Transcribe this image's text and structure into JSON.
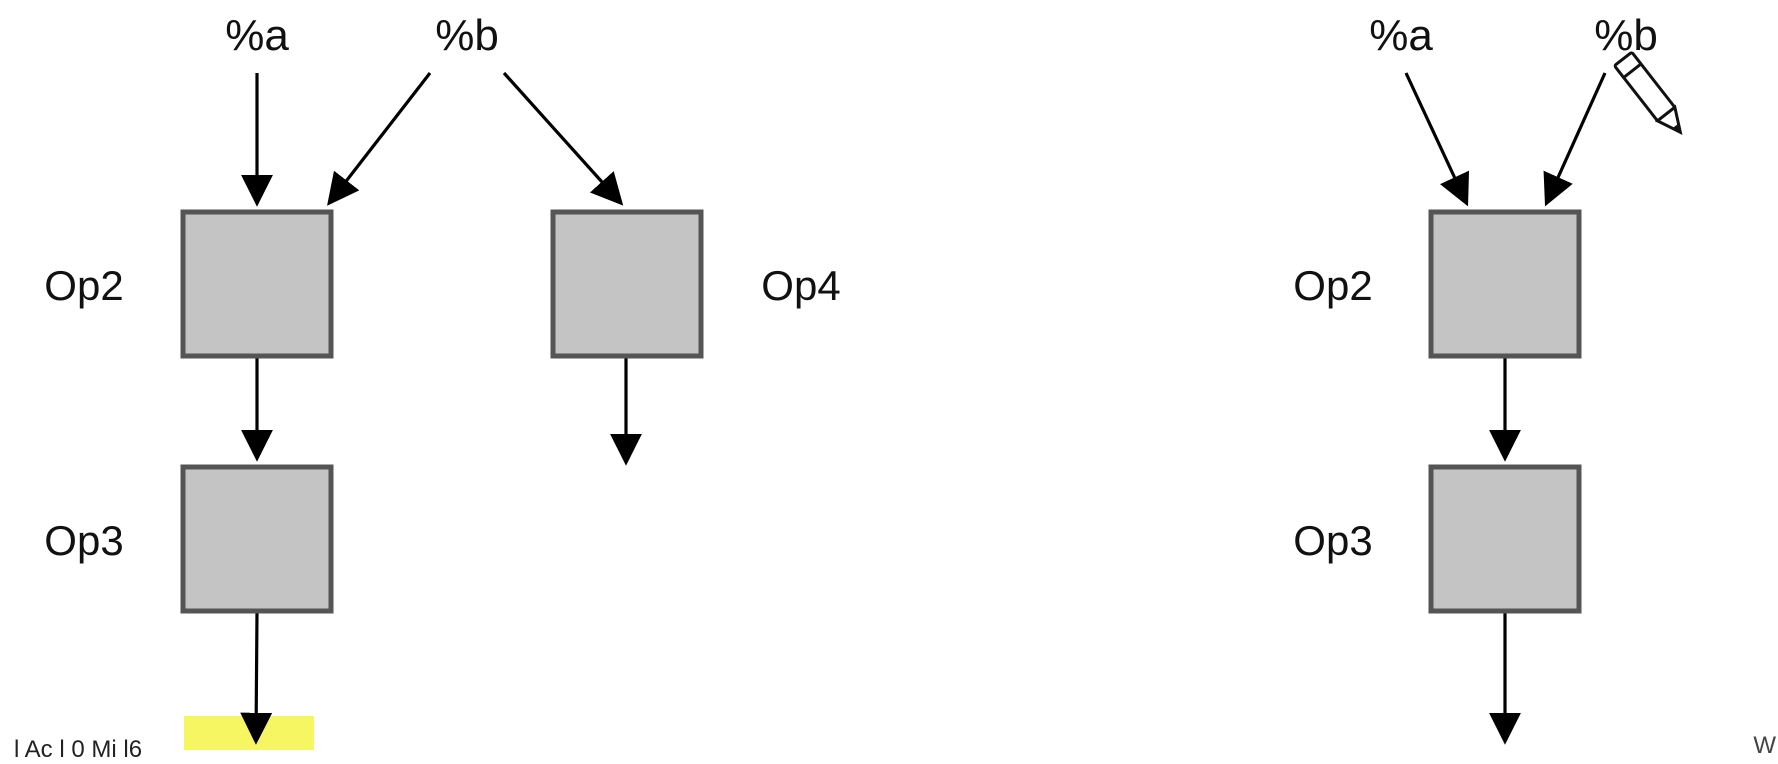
{
  "colors": {
    "box_fill": "#c4c4c4",
    "box_stroke": "#555555",
    "edge": "#000000",
    "highlight": "#f4f55a"
  },
  "diagrams": [
    {
      "id": "left",
      "inputs": [
        {
          "id": "a",
          "label": "%a"
        },
        {
          "id": "b",
          "label": "%b"
        }
      ],
      "ops": [
        {
          "id": "op2",
          "label": "Op2"
        },
        {
          "id": "op3",
          "label": "Op3"
        },
        {
          "id": "op4",
          "label": "Op4"
        }
      ],
      "edges": [
        {
          "from": "a",
          "to": "op2"
        },
        {
          "from": "b",
          "to": "op2"
        },
        {
          "from": "b",
          "to": "op4"
        },
        {
          "from": "op2",
          "to": "op3"
        },
        {
          "from": "op3",
          "to": "out"
        },
        {
          "from": "op4",
          "to": "out"
        }
      ]
    },
    {
      "id": "right",
      "inputs": [
        {
          "id": "a",
          "label": "%a"
        },
        {
          "id": "b",
          "label": "%b"
        }
      ],
      "ops": [
        {
          "id": "op2",
          "label": "Op2"
        },
        {
          "id": "op3",
          "label": "Op3"
        }
      ],
      "edges": [
        {
          "from": "a",
          "to": "op2"
        },
        {
          "from": "b",
          "to": "op2"
        },
        {
          "from": "op2",
          "to": "op3"
        },
        {
          "from": "op3",
          "to": "out"
        }
      ]
    }
  ],
  "footer": {
    "left_text": "l Ac    l 0 Mi  l6",
    "right_text": "W"
  },
  "icons": {
    "annotation_tool": "pencil-icon"
  }
}
